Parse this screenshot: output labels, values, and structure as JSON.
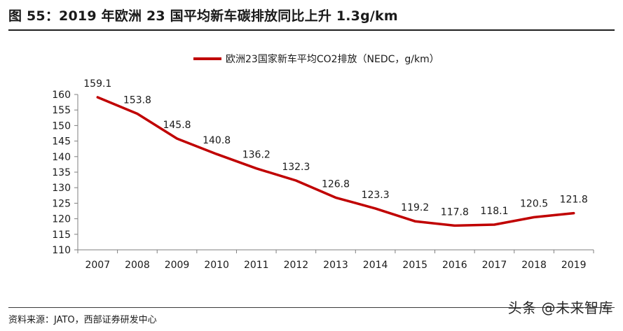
{
  "title": "图 55：2019 年欧洲 23 国平均新车碳排放同比上升 1.3g/km",
  "source": "资料来源：JATO，西部证券研发中心",
  "watermark": "头条 @未来智库",
  "colors": {
    "line": "#c00000",
    "axis": "#7f7f7f",
    "text": "#1a1a1a"
  },
  "chart_data": {
    "type": "line",
    "title": "",
    "xlabel": "",
    "ylabel": "",
    "x": [
      "2007",
      "2008",
      "2009",
      "2010",
      "2011",
      "2012",
      "2013",
      "2014",
      "2015",
      "2016",
      "2017",
      "2018",
      "2019"
    ],
    "series": [
      {
        "name": "欧洲23国家新车平均CO2排放（NEDC，g/km）",
        "values": [
          159.1,
          153.8,
          145.8,
          140.8,
          136.2,
          132.3,
          126.8,
          123.3,
          119.2,
          117.8,
          118.1,
          120.5,
          121.8
        ]
      }
    ],
    "ylim": [
      110,
      160
    ],
    "yticks": [
      110,
      115,
      120,
      125,
      130,
      135,
      140,
      145,
      150,
      155,
      160
    ],
    "grid": false,
    "legend_position": "top-center",
    "data_labels": true
  }
}
